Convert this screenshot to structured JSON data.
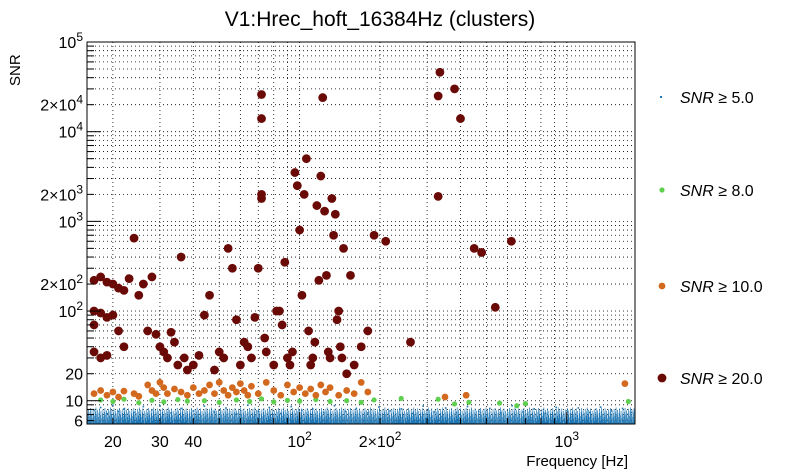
{
  "chart_data": {
    "type": "scatter",
    "title": "V1:Hrec_hoft_16384Hz (clusters)",
    "xlabel": "Frequency [Hz]",
    "ylabel": "SNR",
    "xscale": "log",
    "yscale": "log",
    "xlim": [
      16,
      1800
    ],
    "ylim": [
      5.5,
      100000
    ],
    "grid": true,
    "legend_position": "right",
    "x_ticks": [
      {
        "value": 20,
        "label": "20"
      },
      {
        "value": 30,
        "label": "30"
      },
      {
        "value": 40,
        "label": "40"
      },
      {
        "value": 100,
        "label": "10^2"
      },
      {
        "value": 200,
        "label": "2×10^2"
      },
      {
        "value": 1000,
        "label": "10^3"
      }
    ],
    "y_ticks": [
      {
        "value": 6,
        "label": "6"
      },
      {
        "value": 10,
        "label": "10"
      },
      {
        "value": 20,
        "label": "20"
      },
      {
        "value": 100,
        "label": "10^2"
      },
      {
        "value": 200,
        "label": "2×10^2"
      },
      {
        "value": 1000,
        "label": "10^3"
      },
      {
        "value": 2000,
        "label": "2×10^3"
      },
      {
        "value": 10000,
        "label": "10^4"
      },
      {
        "value": 20000,
        "label": "2×10^4"
      },
      {
        "value": 100000,
        "label": "10^5"
      }
    ],
    "series": [
      {
        "name": "SNR ≥ 5.0",
        "color": "#1f77b4",
        "marker": "dot",
        "points": [
          [
            17,
            7.8
          ],
          [
            18,
            8.4
          ],
          [
            19,
            7.2
          ],
          [
            20,
            8.9
          ],
          [
            21,
            7.6
          ],
          [
            22,
            8.1
          ],
          [
            24,
            7.4
          ],
          [
            26,
            8.6
          ],
          [
            28,
            7.9
          ],
          [
            30,
            8.8
          ],
          [
            33,
            7.3
          ],
          [
            36,
            8.2
          ],
          [
            40,
            7.7
          ],
          [
            44,
            8.7
          ],
          [
            48,
            7.5
          ],
          [
            53,
            8.3
          ],
          [
            58,
            7.1
          ],
          [
            64,
            8.9
          ],
          [
            70,
            7.6
          ],
          [
            77,
            8.4
          ],
          [
            85,
            7.2
          ],
          [
            93,
            8.6
          ],
          [
            102,
            7.8
          ],
          [
            112,
            8.1
          ],
          [
            123,
            7.4
          ],
          [
            135,
            8.8
          ],
          [
            148,
            7.6
          ],
          [
            163,
            8.2
          ],
          [
            180,
            7.3
          ],
          [
            198,
            8.5
          ],
          [
            218,
            7.7
          ],
          [
            240,
            8.1
          ],
          [
            264,
            7.2
          ],
          [
            290,
            8.7
          ],
          [
            320,
            7.5
          ],
          [
            352,
            8.3
          ],
          [
            387,
            7.4
          ],
          [
            425,
            8.6
          ],
          [
            468,
            7.6
          ],
          [
            515,
            8.2
          ],
          [
            567,
            7.3
          ],
          [
            624,
            8.8
          ],
          [
            686,
            7.5
          ],
          [
            755,
            8.1
          ],
          [
            830,
            7.2
          ],
          [
            913,
            8.4
          ],
          [
            1004,
            7.6
          ],
          [
            1105,
            8.3
          ],
          [
            1215,
            7.4
          ],
          [
            1337,
            8.5
          ],
          [
            1470,
            7.7
          ],
          [
            1617,
            8.2
          ],
          [
            1750,
            7.4
          ]
        ]
      },
      {
        "name": "SNR ≥ 8.0",
        "color": "#5fcf50",
        "marker": "circle",
        "points": [
          [
            18,
            10.2
          ],
          [
            20,
            9.8
          ],
          [
            22,
            10.4
          ],
          [
            25,
            9.5
          ],
          [
            28,
            10.1
          ],
          [
            31,
            9.7
          ],
          [
            35,
            10.3
          ],
          [
            38,
            9.9
          ],
          [
            44,
            10.0
          ],
          [
            50,
            9.6
          ],
          [
            58,
            10.2
          ],
          [
            65,
            9.8
          ],
          [
            72,
            10.5
          ],
          [
            80,
            9.7
          ],
          [
            90,
            10.1
          ],
          [
            100,
            9.9
          ],
          [
            115,
            10.3
          ],
          [
            130,
            9.8
          ],
          [
            150,
            10.0
          ],
          [
            170,
            9.6
          ],
          [
            190,
            10.2
          ],
          [
            240,
            10.6
          ],
          [
            330,
            10.4
          ],
          [
            380,
            9.2
          ],
          [
            430,
            9.6
          ],
          [
            560,
            9.4
          ],
          [
            650,
            8.8
          ],
          [
            700,
            9.3
          ],
          [
            1700,
            9.8
          ]
        ]
      },
      {
        "name": "SNR ≥ 10.0",
        "color": "#d2691e",
        "marker": "circle",
        "points": [
          [
            17,
            12
          ],
          [
            18,
            13
          ],
          [
            19,
            11.5
          ],
          [
            20,
            12.5
          ],
          [
            21,
            11
          ],
          [
            22,
            12.8
          ],
          [
            24,
            12
          ],
          [
            25,
            11.2
          ],
          [
            27,
            15
          ],
          [
            28,
            13
          ],
          [
            29,
            12
          ],
          [
            30,
            16
          ],
          [
            31,
            14
          ],
          [
            32,
            12
          ],
          [
            34,
            13.5
          ],
          [
            36,
            12.5
          ],
          [
            38,
            11.5
          ],
          [
            40,
            14
          ],
          [
            42,
            12
          ],
          [
            44,
            13
          ],
          [
            46,
            15
          ],
          [
            48,
            12
          ],
          [
            50,
            16
          ],
          [
            52,
            13
          ],
          [
            54,
            11.5
          ],
          [
            56,
            14
          ],
          [
            58,
            12.5
          ],
          [
            60,
            15.5
          ],
          [
            62,
            13
          ],
          [
            64,
            11.5
          ],
          [
            66,
            14.5
          ],
          [
            70,
            12
          ],
          [
            75,
            16
          ],
          [
            80,
            13
          ],
          [
            85,
            11.5
          ],
          [
            90,
            15
          ],
          [
            95,
            12.5
          ],
          [
            100,
            14
          ],
          [
            105,
            12
          ],
          [
            110,
            13.5
          ],
          [
            115,
            11.5
          ],
          [
            120,
            15
          ],
          [
            125,
            12.5
          ],
          [
            130,
            14
          ],
          [
            140,
            11.5
          ],
          [
            150,
            13
          ],
          [
            160,
            12
          ],
          [
            170,
            16
          ],
          [
            180,
            12.5
          ],
          [
            350,
            11
          ],
          [
            420,
            11.5
          ],
          [
            1650,
            15.5
          ]
        ]
      },
      {
        "name": "SNR ≥ 20.0",
        "color": "#6a0a06",
        "marker": "circle",
        "points": [
          [
            17,
            100
          ],
          [
            18,
            95
          ],
          [
            19,
            85
          ],
          [
            17,
            70
          ],
          [
            20,
            90
          ],
          [
            21,
            60
          ],
          [
            22,
            40
          ],
          [
            17,
            35
          ],
          [
            18,
            30
          ],
          [
            19,
            32
          ],
          [
            17,
            220
          ],
          [
            18,
            240
          ],
          [
            19,
            210
          ],
          [
            20,
            200
          ],
          [
            21,
            180
          ],
          [
            22,
            170
          ],
          [
            23,
            230
          ],
          [
            24,
            650
          ],
          [
            25,
            150
          ],
          [
            26,
            200
          ],
          [
            27,
            60
          ],
          [
            28,
            240
          ],
          [
            29,
            55
          ],
          [
            30,
            40
          ],
          [
            31,
            35
          ],
          [
            32,
            30
          ],
          [
            33,
            58
          ],
          [
            34,
            45
          ],
          [
            35,
            25
          ],
          [
            36,
            400
          ],
          [
            37,
            30
          ],
          [
            38,
            22
          ],
          [
            40,
            25
          ],
          [
            42,
            32
          ],
          [
            44,
            90
          ],
          [
            46,
            150
          ],
          [
            48,
            22
          ],
          [
            50,
            35
          ],
          [
            52,
            30
          ],
          [
            54,
            500
          ],
          [
            56,
            300
          ],
          [
            58,
            80
          ],
          [
            60,
            25
          ],
          [
            62,
            45
          ],
          [
            64,
            40
          ],
          [
            66,
            30
          ],
          [
            68,
            85
          ],
          [
            70,
            300
          ],
          [
            72,
            2000
          ],
          [
            72,
            1800
          ],
          [
            72,
            14000
          ],
          [
            72,
            26000
          ],
          [
            74,
            50
          ],
          [
            75,
            35
          ],
          [
            80,
            25
          ],
          [
            82,
            100
          ],
          [
            84,
            100
          ],
          [
            86,
            70
          ],
          [
            88,
            350
          ],
          [
            90,
            30
          ],
          [
            92,
            25
          ],
          [
            94,
            35
          ],
          [
            96,
            3500
          ],
          [
            98,
            2500
          ],
          [
            100,
            800
          ],
          [
            102,
            150
          ],
          [
            104,
            2000
          ],
          [
            106,
            5000
          ],
          [
            108,
            60
          ],
          [
            110,
            25
          ],
          [
            112,
            30
          ],
          [
            114,
            45
          ],
          [
            116,
            1500
          ],
          [
            118,
            220
          ],
          [
            120,
            3200
          ],
          [
            122,
            24000
          ],
          [
            124,
            1300
          ],
          [
            126,
            250
          ],
          [
            128,
            35
          ],
          [
            130,
            30
          ],
          [
            132,
            1800
          ],
          [
            134,
            700
          ],
          [
            136,
            1200
          ],
          [
            138,
            80
          ],
          [
            140,
            100
          ],
          [
            142,
            40
          ],
          [
            144,
            30
          ],
          [
            146,
            500
          ],
          [
            150,
            20
          ],
          [
            155,
            250
          ],
          [
            160,
            25
          ],
          [
            170,
            40
          ],
          [
            180,
            60
          ],
          [
            190,
            700
          ],
          [
            210,
            600
          ],
          [
            260,
            45
          ],
          [
            330,
            1900
          ],
          [
            330,
            25000
          ],
          [
            335,
            46000
          ],
          [
            380,
            30000
          ],
          [
            400,
            14000
          ],
          [
            450,
            500
          ],
          [
            480,
            450
          ],
          [
            540,
            110
          ],
          [
            620,
            600
          ]
        ]
      }
    ]
  }
}
